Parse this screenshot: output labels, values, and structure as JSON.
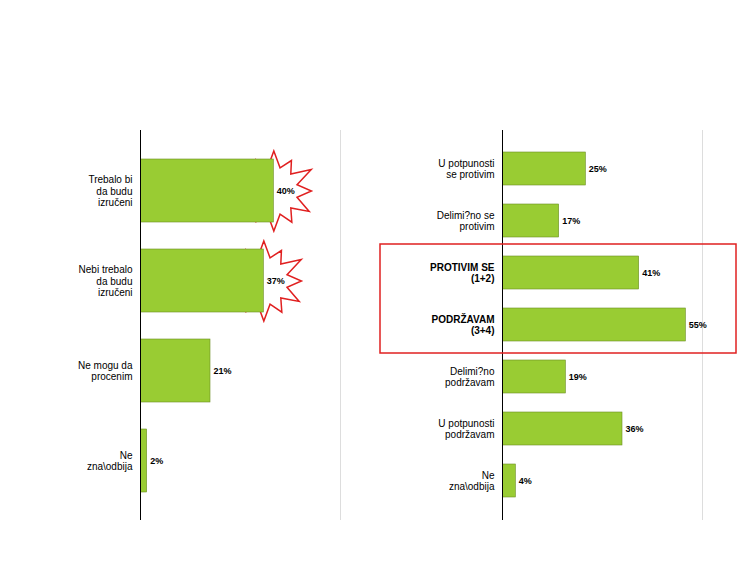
{
  "chart_data": [
    {
      "type": "bar",
      "orientation": "horizontal",
      "categories": [
        "Trebalo bi da budu izručeni",
        "Nebi trebalo da budu izručeni",
        "Ne mogu da procenim",
        "Ne zna\\odbija"
      ],
      "values": [
        40,
        37,
        21,
        2
      ],
      "value_labels": [
        "40%",
        "37%",
        "21%",
        "2%"
      ],
      "color": "#99cc33",
      "xlim": [
        0,
        60
      ],
      "data_labels": true,
      "tick_labels": "y"
    },
    {
      "type": "bar",
      "orientation": "horizontal",
      "categories": [
        "U potpunosti se protivim",
        "Delimi?no se protivim",
        "PROTIVIM SE (1+2)",
        "PODRŽAVAM (3+4)",
        "Delimi?no podržavam",
        "U potpunosti podržavam",
        "Ne zna\\odbija"
      ],
      "values": [
        25,
        17,
        41,
        55,
        19,
        36,
        4
      ],
      "value_labels": [
        "25%",
        "17%",
        "41%",
        "55%",
        "19%",
        "36%",
        "4%"
      ],
      "color": "#99cc33",
      "xlim": [
        0,
        60
      ],
      "data_labels": true,
      "tick_labels": "y"
    }
  ]
}
